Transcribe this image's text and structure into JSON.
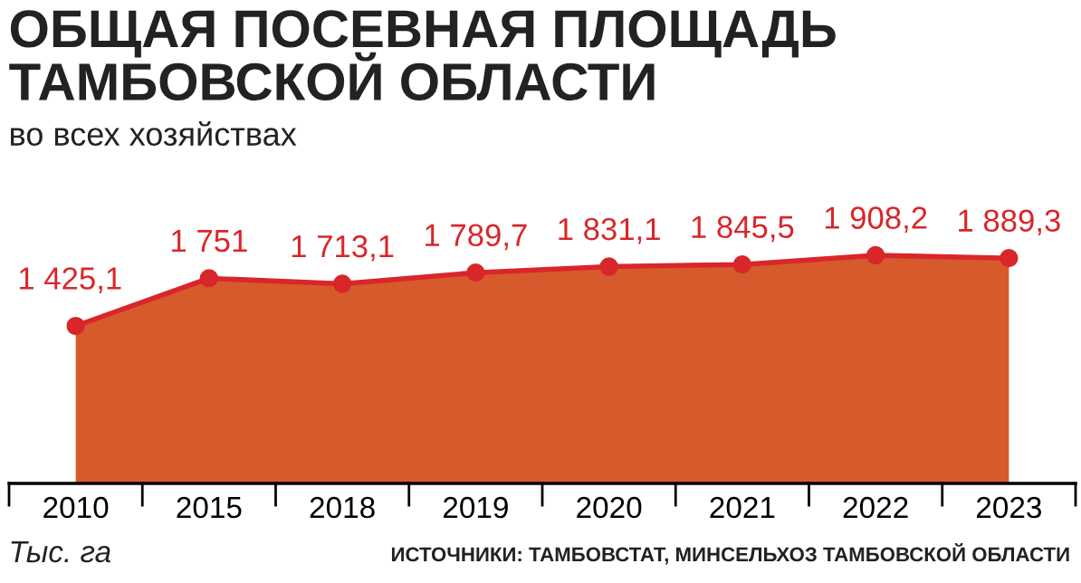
{
  "chart_data": {
    "type": "area",
    "title": "ОБЩАЯ ПОСЕВНАЯ ПЛОЩАДЬ\nТАМБОВСКОЙ ОБЛАСТИ",
    "subtitle": "во всех хозяйствах",
    "categories": [
      "2010",
      "2015",
      "2018",
      "2019",
      "2020",
      "2021",
      "2022",
      "2023"
    ],
    "series": [
      {
        "color": "#d65a2c",
        "values": [
          1425.1,
          1751,
          1713.1,
          1789.7,
          1831.1,
          1845.5,
          1908.2,
          1889.3
        ],
        "value_labels": [
          "1 425,1",
          "1 751",
          "1 713,1",
          "1 789,7",
          "1 831,1",
          "1 845,5",
          "1 908,2",
          "1 889,3"
        ]
      }
    ],
    "marker": "circle",
    "grid": false,
    "legend": false,
    "annotations": [
      "Тыс. га",
      "ИСТОЧНИКИ: ТАМБОВСТАТ, МИНСЕЛЬХОЗ ТАМБОВСКОЙ ОБЛАСТИ"
    ]
  }
}
